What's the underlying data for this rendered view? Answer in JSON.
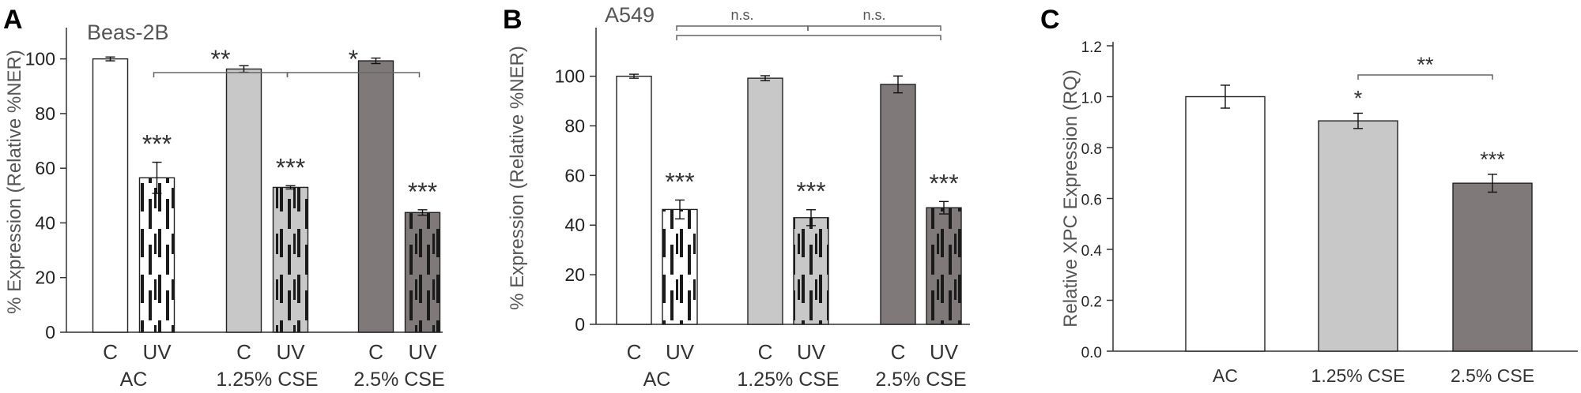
{
  "palette": {
    "AC": "#ffffff",
    "CSE_1_25": "#c8c8c8",
    "CSE_2_5": "#7f7a79",
    "stripe": "#1a1a1a",
    "outline": "#222222"
  },
  "chart_data": [
    {
      "panel": "A",
      "type": "bar",
      "title": "Beas-2B",
      "ylabel": "% Expression (Relative %NER)",
      "ylim": [
        0,
        110
      ],
      "yticks": [
        0,
        20,
        40,
        60,
        80,
        100
      ],
      "groups": [
        {
          "label": "AC",
          "color": "AC",
          "bars": [
            {
              "x": "C",
              "value": 100,
              "error": 0.7,
              "pattern": "solid",
              "sig": ""
            },
            {
              "x": "UV",
              "value": 56.5,
              "error": 5.7,
              "pattern": "striped",
              "sig": "***"
            }
          ]
        },
        {
          "label": "1.25% CSE",
          "color": "CSE_1_25",
          "bars": [
            {
              "x": "C",
              "value": 96.3,
              "error": 1.2,
              "pattern": "solid",
              "sig": ""
            },
            {
              "x": "UV",
              "value": 53.0,
              "error": 0.6,
              "pattern": "striped",
              "sig": "***"
            }
          ]
        },
        {
          "label": "2.5% CSE",
          "color": "CSE_2_5",
          "bars": [
            {
              "x": "C",
              "value": 99.3,
              "error": 1.0,
              "pattern": "solid",
              "sig": ""
            },
            {
              "x": "UV",
              "value": 43.8,
              "error": 1.0,
              "pattern": "striped",
              "sig": "***"
            }
          ]
        }
      ],
      "comparisons": [
        {
          "from": [
            0,
            1
          ],
          "to": [
            1,
            1
          ],
          "label": "**"
        },
        {
          "from": [
            1,
            1
          ],
          "to": [
            2,
            1
          ],
          "label": "*"
        }
      ]
    },
    {
      "panel": "B",
      "type": "bar",
      "title": "A549",
      "ylabel": "% Expression (Relative %NER)",
      "ylim": [
        0,
        118
      ],
      "yticks": [
        0,
        20,
        40,
        60,
        80,
        100
      ],
      "groups": [
        {
          "label": "AC",
          "color": "AC",
          "bars": [
            {
              "x": "C",
              "value": 100,
              "error": 0.8,
              "pattern": "solid",
              "sig": ""
            },
            {
              "x": "UV",
              "value": 46.3,
              "error": 3.8,
              "pattern": "striped",
              "sig": "***"
            }
          ]
        },
        {
          "label": "1.25% CSE",
          "color": "CSE_1_25",
          "bars": [
            {
              "x": "C",
              "value": 99.2,
              "error": 1.0,
              "pattern": "solid",
              "sig": ""
            },
            {
              "x": "UV",
              "value": 43.0,
              "error": 3.2,
              "pattern": "striped",
              "sig": "***"
            }
          ]
        },
        {
          "label": "2.5% CSE",
          "color": "CSE_2_5",
          "bars": [
            {
              "x": "C",
              "value": 96.7,
              "error": 3.4,
              "pattern": "solid",
              "sig": ""
            },
            {
              "x": "UV",
              "value": 47.0,
              "error": 2.5,
              "pattern": "striped",
              "sig": "***"
            }
          ]
        }
      ],
      "comparisons": [
        {
          "from": [
            0,
            1
          ],
          "to": [
            1,
            1
          ],
          "label": "n.s.",
          "level": 2
        },
        {
          "from": [
            1,
            1
          ],
          "to": [
            2,
            1
          ],
          "label": "n.s.",
          "level": 2
        },
        {
          "from": [
            0,
            1
          ],
          "to": [
            2,
            1
          ],
          "label": "",
          "level": 1
        }
      ]
    },
    {
      "panel": "C",
      "type": "bar",
      "title": "",
      "ylabel": "Relative XPC Expression (RQ)",
      "ylim": [
        0,
        1.2
      ],
      "yticks": [
        "0.0",
        "0.2",
        "0.4",
        "0.6",
        "0.8",
        "1.0",
        "1.2"
      ],
      "bars": [
        {
          "x": "AC",
          "value": 1.0,
          "error": 0.045,
          "color": "AC",
          "sig": ""
        },
        {
          "x": "1.25% CSE",
          "value": 0.905,
          "error": 0.03,
          "color": "CSE_1_25",
          "sig": "*"
        },
        {
          "x": "2.5% CSE",
          "value": 0.66,
          "error": 0.035,
          "color": "CSE_2_5",
          "sig": "***"
        }
      ],
      "comparisons": [
        {
          "from": 1,
          "to": 2,
          "label": "**"
        }
      ]
    }
  ]
}
